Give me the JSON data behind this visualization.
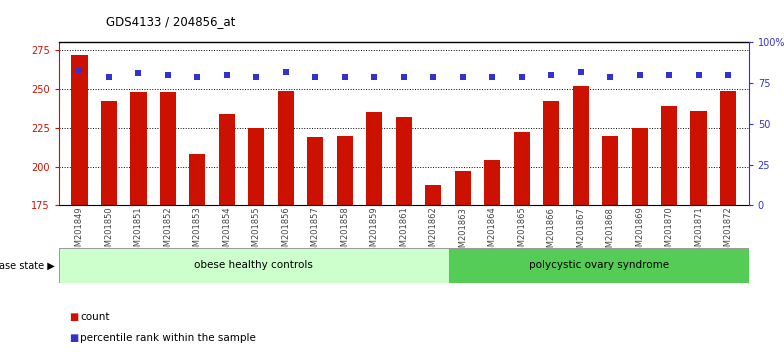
{
  "title": "GDS4133 / 204856_at",
  "samples": [
    "GSM201849",
    "GSM201850",
    "GSM201851",
    "GSM201852",
    "GSM201853",
    "GSM201854",
    "GSM201855",
    "GSM201856",
    "GSM201857",
    "GSM201858",
    "GSM201859",
    "GSM201861",
    "GSM201862",
    "GSM201863",
    "GSM201864",
    "GSM201865",
    "GSM201866",
    "GSM201867",
    "GSM201868",
    "GSM201869",
    "GSM201870",
    "GSM201871",
    "GSM201872"
  ],
  "counts": [
    272,
    242,
    248,
    248,
    208,
    234,
    225,
    249,
    219,
    220,
    235,
    232,
    188,
    197,
    204,
    222,
    242,
    252,
    220,
    225,
    239,
    236,
    249
  ],
  "percentiles": [
    83,
    79,
    81,
    80,
    79,
    80,
    79,
    82,
    79,
    79,
    79,
    79,
    79,
    79,
    79,
    79,
    80,
    82,
    79,
    80,
    80,
    80,
    80
  ],
  "bar_color": "#cc1100",
  "dot_color": "#3333cc",
  "ylim_left": [
    175,
    280
  ],
  "ylim_right": [
    0,
    100
  ],
  "yticks_left": [
    175,
    200,
    225,
    250,
    275
  ],
  "yticks_right": [
    0,
    25,
    50,
    75,
    100
  ],
  "yticklabels_right": [
    "0",
    "25",
    "50",
    "75",
    "100%"
  ],
  "group1_label": "obese healthy controls",
  "group1_count": 13,
  "group2_label": "polycystic ovary syndrome",
  "group1_color": "#ccffcc",
  "group2_color": "#55cc55",
  "disease_state_label": "disease state",
  "legend_count_label": "count",
  "legend_pct_label": "percentile rank within the sample",
  "background_color": "#ffffff"
}
